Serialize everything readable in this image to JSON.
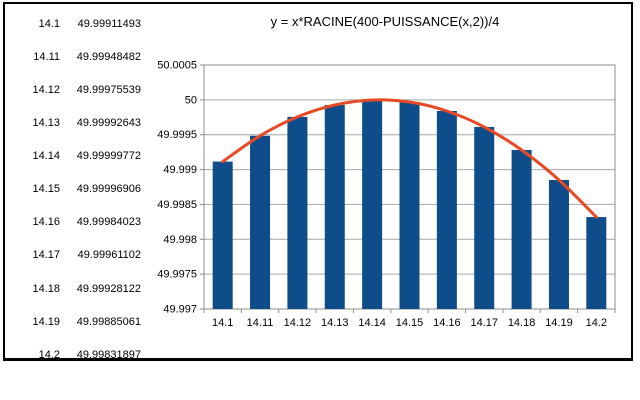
{
  "chart": {
    "title": "y = x*RACINE(400-PUISSANCE(x,2))/4"
  },
  "table": {
    "rows": [
      {
        "x": "14.1",
        "y": "49.99911493"
      },
      {
        "x": "14.11",
        "y": "49.99948482"
      },
      {
        "x": "14.12",
        "y": "49.99975539"
      },
      {
        "x": "14.13",
        "y": "49.99992643"
      },
      {
        "x": "14.14",
        "y": "49.99999772"
      },
      {
        "x": "14.15",
        "y": "49.99996906"
      },
      {
        "x": "14.16",
        "y": "49.99984023"
      },
      {
        "x": "14.17",
        "y": "49.99961102"
      },
      {
        "x": "14.18",
        "y": "49.99928122"
      },
      {
        "x": "14.19",
        "y": "49.99885061"
      },
      {
        "x": "14.2",
        "y": "49.99831897"
      }
    ]
  },
  "chart_data": {
    "type": "bar",
    "title": "y = x*RACINE(400-PUISSANCE(x,2))/4",
    "categories": [
      "14.1",
      "14.11",
      "14.12",
      "14.13",
      "14.14",
      "14.15",
      "14.16",
      "14.17",
      "14.18",
      "14.19",
      "14.2"
    ],
    "series": [
      {
        "name": "y-values-bars",
        "type": "bar",
        "color": "#0E4C8A",
        "values": [
          49.99911493,
          49.99948482,
          49.99975539,
          49.99992643,
          49.99999772,
          49.99996906,
          49.99984023,
          49.99961102,
          49.99928122,
          49.99885061,
          49.99831897
        ]
      },
      {
        "name": "y-values-smooth-curve",
        "type": "line",
        "color": "#E84A25",
        "values": [
          49.99911493,
          49.99948482,
          49.99975539,
          49.99992643,
          49.99999772,
          49.99996906,
          49.99984023,
          49.99961102,
          49.99928122,
          49.99885061,
          49.99831897
        ]
      }
    ],
    "xlabel": "",
    "ylabel": "",
    "ylim": [
      49.997,
      50.0005
    ],
    "yticks": [
      {
        "value": 50.0005,
        "label": "50.0005"
      },
      {
        "value": 50,
        "label": "50"
      },
      {
        "value": 49.9995,
        "label": "49.9995"
      },
      {
        "value": 49.999,
        "label": "49.999"
      },
      {
        "value": 49.9985,
        "label": "49.9985"
      },
      {
        "value": 49.998,
        "label": "49.998"
      },
      {
        "value": 49.9975,
        "label": "49.9975"
      },
      {
        "value": 49.997,
        "label": "49.997"
      }
    ],
    "grid": true,
    "legend": "none",
    "colors": {
      "bar": "#0E4C8A",
      "line": "#E84A25",
      "grid": "#A6A6A6",
      "axis": "#8C8C8C",
      "frame_border": "#000000",
      "background": "#FFFFFF"
    }
  }
}
